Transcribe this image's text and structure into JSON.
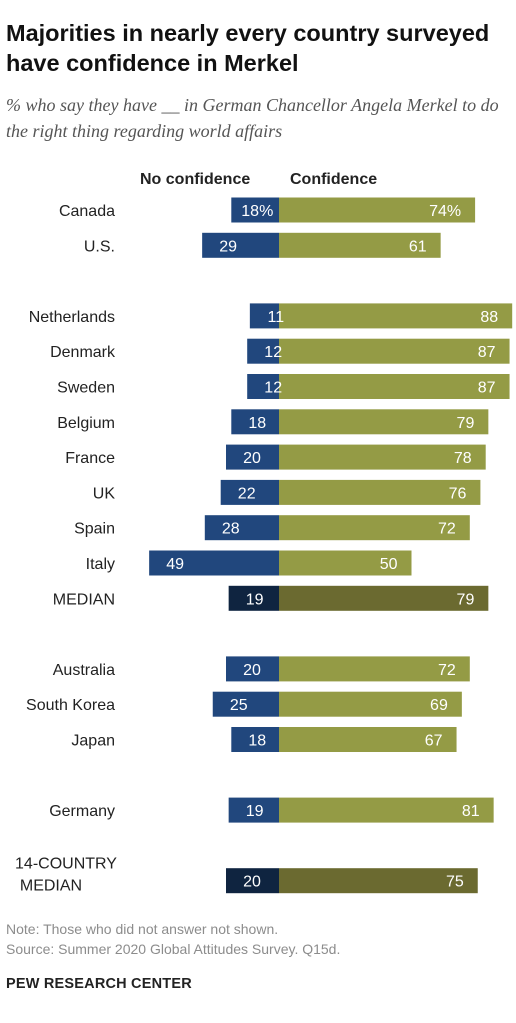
{
  "title": "Majorities in nearly every country surveyed have confidence in Merkel",
  "subtitle": "% who say they have __ in German Chancellor Angela Merkel to do the right thing regarding world affairs",
  "note": "Note: Those who did not answer not shown.",
  "source": "Source: Summer 2020 Global Attitudes Survey. Q15d.",
  "organization": "PEW RESEARCH CENTER",
  "chart_data": {
    "type": "bar",
    "orientation": "diverging-horizontal",
    "series": [
      {
        "name": "No confidence",
        "color": "#21477d"
      },
      {
        "name": "Confidence",
        "color": "#949b45"
      }
    ],
    "median_colors": {
      "No confidence": "#0f2440",
      "Confidence": "#6b6a30"
    },
    "groups": [
      {
        "rows": [
          {
            "category": "Canada",
            "no": 18,
            "yes": 74,
            "no_label": "18%",
            "yes_label": "74%"
          },
          {
            "category": "U.S.",
            "no": 29,
            "yes": 61,
            "no_label": "29",
            "yes_label": "61"
          }
        ]
      },
      {
        "rows": [
          {
            "category": "Netherlands",
            "no": 11,
            "yes": 88,
            "no_label": "11",
            "yes_label": "88"
          },
          {
            "category": "Denmark",
            "no": 12,
            "yes": 87,
            "no_label": "12",
            "yes_label": "87"
          },
          {
            "category": "Sweden",
            "no": 12,
            "yes": 87,
            "no_label": "12",
            "yes_label": "87"
          },
          {
            "category": "Belgium",
            "no": 18,
            "yes": 79,
            "no_label": "18",
            "yes_label": "79"
          },
          {
            "category": "France",
            "no": 20,
            "yes": 78,
            "no_label": "20",
            "yes_label": "78"
          },
          {
            "category": "UK",
            "no": 22,
            "yes": 76,
            "no_label": "22",
            "yes_label": "76"
          },
          {
            "category": "Spain",
            "no": 28,
            "yes": 72,
            "no_label": "28",
            "yes_label": "72"
          },
          {
            "category": "Italy",
            "no": 49,
            "yes": 50,
            "no_label": "49",
            "yes_label": "50"
          },
          {
            "category": "MEDIAN",
            "no": 19,
            "yes": 79,
            "no_label": "19",
            "yes_label": "79",
            "median": true
          }
        ]
      },
      {
        "rows": [
          {
            "category": "Australia",
            "no": 20,
            "yes": 72,
            "no_label": "20",
            "yes_label": "72"
          },
          {
            "category": "South Korea",
            "no": 25,
            "yes": 69,
            "no_label": "25",
            "yes_label": "69"
          },
          {
            "category": "Japan",
            "no": 18,
            "yes": 67,
            "no_label": "18",
            "yes_label": "67"
          }
        ]
      },
      {
        "rows": [
          {
            "category": "Germany",
            "no": 19,
            "yes": 81,
            "no_label": "19",
            "yes_label": "81"
          }
        ]
      },
      {
        "rows": [
          {
            "category": "14-COUNTRY MEDIAN",
            "no": 20,
            "yes": 75,
            "no_label": "20",
            "yes_label": "75",
            "median": true
          }
        ]
      }
    ]
  }
}
